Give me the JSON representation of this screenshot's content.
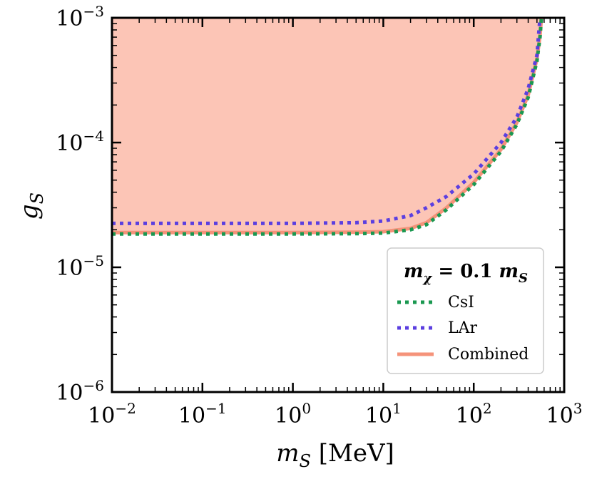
{
  "chart_data": {
    "type": "line",
    "xlabel": "m_S [MeV]",
    "xlabel_main": "m",
    "xlabel_sub": "S",
    "xlabel_unit": " [MeV]",
    "ylabel": "g_S",
    "ylabel_main": "g",
    "ylabel_sub": "S",
    "xscale": "log",
    "yscale": "log",
    "xlim": [
      0.01,
      1000
    ],
    "ylim": [
      1e-06,
      0.001
    ],
    "xticks": [
      {
        "base": "10",
        "exp": "−2"
      },
      {
        "base": "10",
        "exp": "−1"
      },
      {
        "base": "10",
        "exp": "0"
      },
      {
        "base": "10",
        "exp": "1"
      },
      {
        "base": "10",
        "exp": "2"
      },
      {
        "base": "10",
        "exp": "3"
      }
    ],
    "yticks": [
      {
        "base": "10",
        "exp": "−6"
      },
      {
        "base": "10",
        "exp": "−5"
      },
      {
        "base": "10",
        "exp": "−4"
      },
      {
        "base": "10",
        "exp": "−3"
      }
    ],
    "legend": {
      "title": "m_χ = 0.1 m_S",
      "title_m": "m",
      "title_chi": "χ",
      "title_eq": " = 0.1 ",
      "title_m2": "m",
      "title_s": "S",
      "placement": "lower-right"
    },
    "series": [
      {
        "name": "CsI",
        "style": "dotted",
        "color": "#1a9850",
        "x": [
          0.01,
          0.1,
          1,
          5,
          10,
          20,
          30,
          50,
          100,
          200,
          300,
          400,
          500,
          540,
          560
        ],
        "y": [
          1.85e-05,
          1.85e-05,
          1.85e-05,
          1.86e-05,
          1.88e-05,
          2e-05,
          2.2e-05,
          2.9e-05,
          4.6e-05,
          8.5e-05,
          0.00014,
          0.00023,
          0.00045,
          0.0007,
          0.001
        ]
      },
      {
        "name": "LAr",
        "style": "dotted",
        "color": "#5b3fe0",
        "x": [
          0.01,
          0.1,
          1,
          5,
          10,
          20,
          30,
          50,
          100,
          200,
          300,
          400,
          500,
          540
        ],
        "y": [
          2.25e-05,
          2.25e-05,
          2.25e-05,
          2.28e-05,
          2.35e-05,
          2.6e-05,
          3e-05,
          3.7e-05,
          5.6e-05,
          0.0001,
          0.00016,
          0.00027,
          0.0005,
          0.001
        ]
      },
      {
        "name": "Combined",
        "style": "solid",
        "color": "#f5937a",
        "x": [
          0.01,
          0.1,
          1,
          5,
          10,
          20,
          30,
          50,
          100,
          200,
          300,
          400,
          500,
          540,
          560
        ],
        "y": [
          1.9e-05,
          1.9e-05,
          1.9e-05,
          1.91e-05,
          1.93e-05,
          2.05e-05,
          2.28e-05,
          3e-05,
          4.8e-05,
          8.8e-05,
          0.000145,
          0.00024,
          0.00047,
          0.00072,
          0.001
        ]
      }
    ],
    "fill": {
      "color": "#fcc5b6",
      "above_series": "Combined"
    },
    "grid": false
  }
}
